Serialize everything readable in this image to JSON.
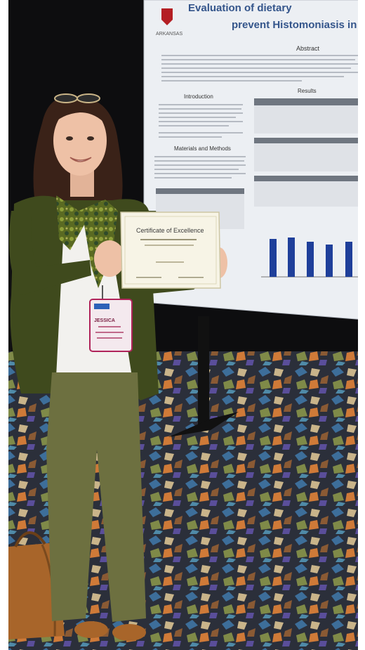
{
  "poster": {
    "title_line1": "Evaluation of dietary",
    "title_line2": "prevent Histomoniasis in",
    "institution_logo_text": "ARKANSAS",
    "abstract_heading": "Abstract",
    "introduction_heading": "Introduction",
    "results_heading": "Results",
    "materials_heading": "Materials and Methods"
  },
  "certificate": {
    "title": "Certificate of Excellence"
  },
  "badge": {
    "name": "JESSICA"
  },
  "colors": {
    "poster_bg": "#eceff3",
    "curtain": "#0d0d0f",
    "cardigan": "#3f4a1d",
    "pants": "#6d7040",
    "bar_blue": "#1f3f9a",
    "carpet_base": "#2b2f3a"
  }
}
